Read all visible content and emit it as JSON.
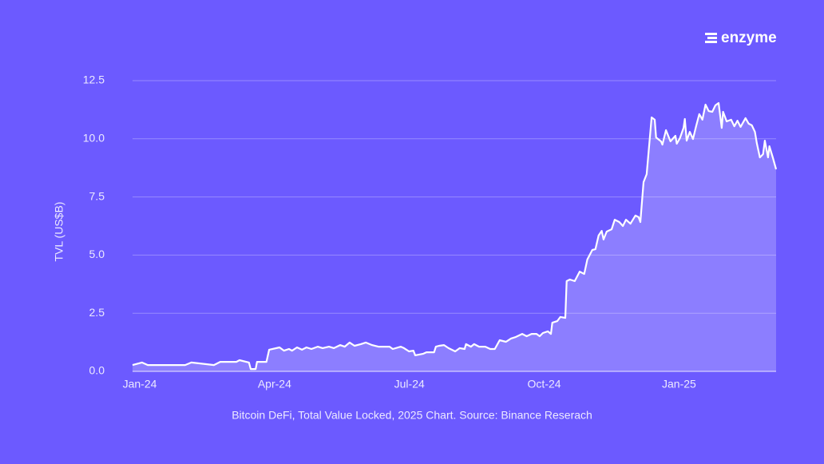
{
  "brand": "enzyme",
  "chart_data": {
    "type": "area",
    "caption": "Bitcoin DeFi, Total Value Locked, 2025 Chart. Source: Binance Reserach",
    "y_label": "TVL (US$B)",
    "color": "#ffffff",
    "grid": true,
    "xlim": [
      -0.16,
      14.16
    ],
    "xticks": [
      {
        "value": 0,
        "label": "Jan-24"
      },
      {
        "value": 3,
        "label": "Apr-24"
      },
      {
        "value": 6,
        "label": "Jul-24"
      },
      {
        "value": 9,
        "label": "Oct-24"
      },
      {
        "value": 12,
        "label": "Jan-25"
      }
    ],
    "ylim": [
      0,
      12.5
    ],
    "yticks": [
      {
        "value": 0,
        "label": "0.0"
      },
      2.5,
      {
        "value": 5,
        "label": "5.0"
      },
      7.5,
      {
        "value": 10,
        "label": "10.0"
      },
      12.5
    ],
    "x": [
      -0.16,
      0.05,
      0.18,
      1.01,
      1.15,
      1.65,
      1.79,
      2.15,
      2.22,
      2.43,
      2.47,
      2.58,
      2.61,
      2.82,
      2.88,
      3.11,
      3.21,
      3.32,
      3.39,
      3.5,
      3.61,
      3.71,
      3.82,
      3.96,
      4.07,
      4.21,
      4.32,
      4.46,
      4.56,
      4.67,
      4.78,
      4.92,
      5.03,
      5.17,
      5.31,
      5.56,
      5.63,
      5.81,
      5.88,
      5.99,
      6.09,
      6.13,
      6.31,
      6.38,
      6.55,
      6.59,
      6.66,
      6.77,
      6.87,
      7.02,
      7.12,
      7.23,
      7.26,
      7.37,
      7.44,
      7.55,
      7.69,
      7.8,
      7.9,
      8.01,
      8.15,
      8.26,
      8.37,
      8.51,
      8.61,
      8.72,
      8.83,
      8.9,
      8.97,
      9.08,
      9.15,
      9.18,
      9.29,
      9.36,
      9.47,
      9.5,
      9.57,
      9.68,
      9.79,
      9.89,
      9.96,
      10.07,
      10.14,
      10.21,
      10.28,
      10.32,
      10.39,
      10.5,
      10.57,
      10.67,
      10.75,
      10.82,
      10.92,
      11.03,
      11.1,
      11.14,
      11.21,
      11.28,
      11.39,
      11.46,
      11.49,
      11.6,
      11.63,
      11.71,
      11.81,
      11.92,
      11.95,
      12.02,
      12.1,
      12.13,
      12.17,
      12.24,
      12.31,
      12.38,
      12.45,
      12.52,
      12.59,
      12.66,
      12.74,
      12.81,
      12.88,
      12.95,
      12.98,
      13.06,
      13.16,
      13.23,
      13.3,
      13.37,
      13.48,
      13.55,
      13.62,
      13.69,
      13.73,
      13.8,
      13.87,
      13.91,
      13.98,
      14.01,
      14.09,
      14.16
    ],
    "values": [
      0.27,
      0.38,
      0.27,
      0.27,
      0.38,
      0.27,
      0.41,
      0.41,
      0.48,
      0.38,
      0.1,
      0.1,
      0.41,
      0.41,
      0.93,
      1.03,
      0.89,
      0.96,
      0.89,
      1.03,
      0.93,
      1.03,
      0.96,
      1.06,
      1.0,
      1.06,
      1.0,
      1.13,
      1.06,
      1.24,
      1.1,
      1.17,
      1.24,
      1.13,
      1.06,
      1.06,
      0.96,
      1.06,
      1.0,
      0.86,
      0.89,
      0.69,
      0.76,
      0.82,
      0.82,
      1.06,
      1.1,
      1.13,
      1.0,
      0.86,
      1.0,
      0.96,
      1.17,
      1.06,
      1.17,
      1.06,
      1.06,
      0.96,
      0.96,
      1.34,
      1.27,
      1.41,
      1.48,
      1.61,
      1.51,
      1.61,
      1.61,
      1.51,
      1.65,
      1.72,
      1.61,
      2.09,
      2.16,
      2.34,
      2.3,
      3.88,
      3.95,
      3.88,
      4.29,
      4.19,
      4.81,
      5.22,
      5.25,
      5.84,
      6.04,
      5.67,
      6.01,
      6.11,
      6.52,
      6.42,
      6.25,
      6.52,
      6.35,
      6.7,
      6.63,
      6.42,
      8.14,
      8.48,
      10.92,
      10.82,
      10.06,
      9.89,
      9.75,
      10.37,
      9.89,
      10.13,
      9.79,
      10.03,
      10.47,
      10.85,
      9.92,
      10.3,
      9.99,
      10.54,
      11.06,
      10.82,
      11.47,
      11.19,
      11.16,
      11.44,
      11.54,
      10.47,
      11.16,
      10.75,
      10.82,
      10.54,
      10.78,
      10.51,
      10.89,
      10.65,
      10.58,
      10.3,
      9.82,
      9.2,
      9.34,
      9.92,
      9.2,
      9.68,
      9.17,
      8.69
    ]
  }
}
